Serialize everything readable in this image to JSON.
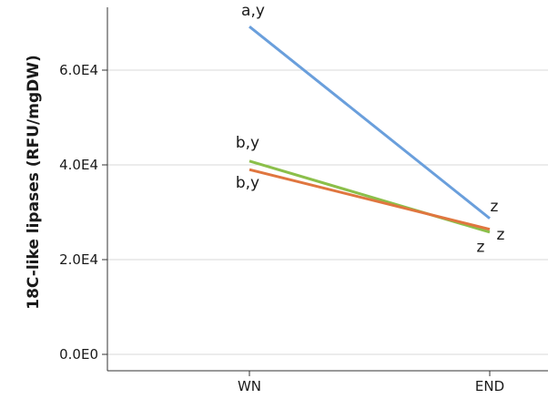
{
  "chart_data": {
    "type": "line",
    "categories": [
      "WN",
      "END"
    ],
    "ylabel": "18C-like lipases (RFU/mgDW)",
    "ylim": [
      0,
      70000
    ],
    "yticks": [
      0,
      20000,
      40000,
      60000
    ],
    "ytick_labels": [
      "0.0E0",
      "2.0E4",
      "4.0E4",
      "6.0E4"
    ],
    "grid": true,
    "series": [
      {
        "color": "#6a9fdc",
        "values": [
          69200,
          28700
        ],
        "labels": [
          "a,y",
          "z"
        ]
      },
      {
        "color": "#8bbf4a",
        "values": [
          40800,
          25800
        ],
        "labels": [
          "b,y",
          "z"
        ]
      },
      {
        "color": "#e0763f",
        "values": [
          39000,
          26400
        ],
        "labels": [
          "b,y",
          "z"
        ]
      }
    ]
  }
}
